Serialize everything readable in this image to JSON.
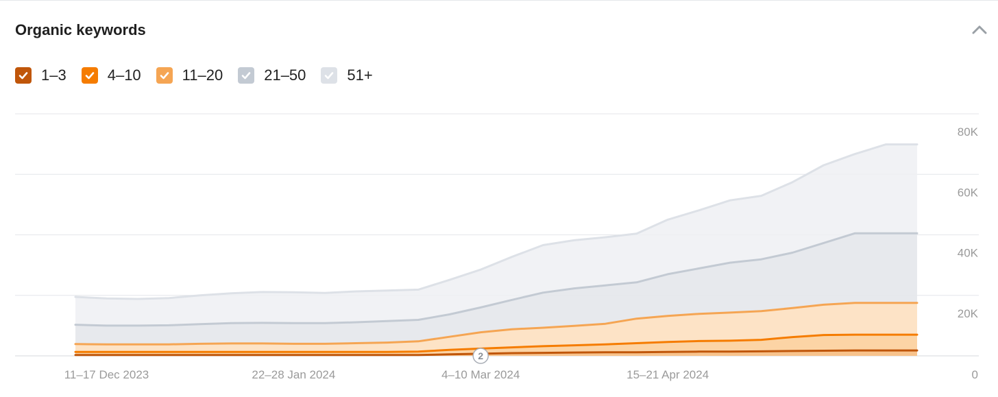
{
  "widget": {
    "title": "Organic keywords",
    "collapse_icon": "chevron-up-icon"
  },
  "legend": [
    {
      "label": "1–3",
      "color": "#c0560a",
      "checked": true
    },
    {
      "label": "4–10",
      "color": "#f57c00",
      "checked": true
    },
    {
      "label": "11–20",
      "color": "#f5a553",
      "checked": true
    },
    {
      "label": "21–50",
      "color": "#c3cad3",
      "checked": true
    },
    {
      "label": "51+",
      "color": "#dde1e7",
      "checked": true
    }
  ],
  "annotation": {
    "label": "2",
    "x": "4–10 Mar 2024"
  },
  "chart_data": {
    "type": "area",
    "stacked": false,
    "title": "Organic keywords",
    "xlabel": "",
    "ylabel": "",
    "ylim": [
      0,
      80000
    ],
    "y_ticks": [
      {
        "value": 80000,
        "label": "80K"
      },
      {
        "value": 60000,
        "label": "60K"
      },
      {
        "value": 40000,
        "label": "40K"
      },
      {
        "value": 20000,
        "label": "20K"
      },
      {
        "value": 0,
        "label": "0"
      }
    ],
    "x_ticks": [
      "11–17 Dec 2023",
      "22–28 Jan 2024",
      "4–10 Mar 2024",
      "15–21 Apr 2024"
    ],
    "x_tick_weeks": [
      1,
      7,
      13,
      19
    ],
    "grid": true,
    "legend_position": "top-left",
    "x_weeks": [
      0,
      1,
      2,
      3,
      4,
      5,
      6,
      7,
      8,
      9,
      10,
      11,
      12,
      13,
      14,
      15,
      16,
      17,
      18,
      19,
      20,
      21,
      22,
      23,
      24,
      25,
      26,
      27
    ],
    "series": [
      {
        "name": "51+",
        "color": "#dde1e7",
        "values": [
          19500,
          19000,
          18800,
          19100,
          20000,
          20700,
          21100,
          21000,
          20800,
          21300,
          21600,
          21900,
          25100,
          28500,
          32700,
          36600,
          38200,
          39200,
          40400,
          45000,
          48100,
          51400,
          52900,
          57400,
          63000,
          66700,
          69900,
          69900
        ]
      },
      {
        "name": "21–50",
        "color": "#c3cad3",
        "values": [
          10300,
          10000,
          10000,
          10100,
          10500,
          10800,
          10900,
          10800,
          10800,
          11100,
          11500,
          11900,
          13700,
          16000,
          18500,
          20900,
          22300,
          23300,
          24300,
          27000,
          28900,
          30800,
          31900,
          34100,
          37300,
          40500,
          40500,
          40500
        ]
      },
      {
        "name": "11–20",
        "color": "#f5a553",
        "values": [
          3900,
          3800,
          3800,
          3800,
          4000,
          4100,
          4100,
          4000,
          4000,
          4200,
          4400,
          4800,
          6300,
          7800,
          8800,
          9300,
          9900,
          10600,
          12300,
          13200,
          13900,
          14300,
          14800,
          15800,
          16900,
          17500,
          17500,
          17500
        ]
      },
      {
        "name": "4–10",
        "color": "#f57c00",
        "values": [
          1300,
          1300,
          1300,
          1300,
          1300,
          1300,
          1300,
          1300,
          1300,
          1300,
          1300,
          1400,
          2000,
          2400,
          2800,
          3200,
          3500,
          3800,
          4200,
          4600,
          4900,
          5000,
          5300,
          6200,
          6900,
          7000,
          7000,
          7000
        ]
      },
      {
        "name": "1–3",
        "color": "#c0560a",
        "values": [
          300,
          300,
          300,
          300,
          300,
          300,
          300,
          300,
          300,
          300,
          300,
          300,
          500,
          700,
          900,
          1000,
          1100,
          1200,
          1200,
          1300,
          1400,
          1400,
          1500,
          1600,
          1700,
          1800,
          1800,
          1800
        ]
      }
    ]
  }
}
